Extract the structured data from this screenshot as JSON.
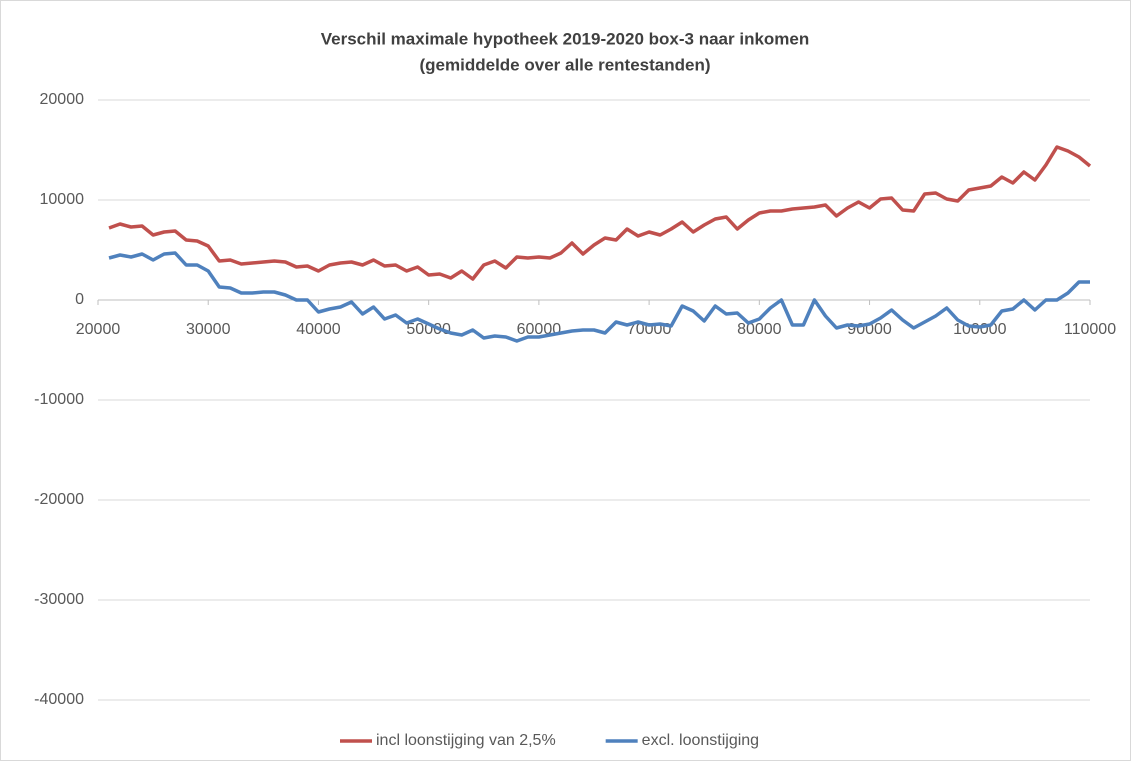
{
  "chart_data": {
    "type": "line",
    "title": "Verschil maximale hypotheek 2019-2020 box-3 naar inkomen",
    "subtitle": "(gemiddelde over alle rentestanden)",
    "x": [
      21000,
      22000,
      23000,
      24000,
      25000,
      26000,
      27000,
      28000,
      29000,
      30000,
      31000,
      32000,
      33000,
      34000,
      35000,
      36000,
      37000,
      38000,
      39000,
      40000,
      41000,
      42000,
      43000,
      44000,
      45000,
      46000,
      47000,
      48000,
      49000,
      50000,
      51000,
      52000,
      53000,
      54000,
      55000,
      56000,
      57000,
      58000,
      59000,
      60000,
      61000,
      62000,
      63000,
      64000,
      65000,
      66000,
      67000,
      68000,
      69000,
      70000,
      71000,
      72000,
      73000,
      74000,
      75000,
      76000,
      77000,
      78000,
      79000,
      80000,
      81000,
      82000,
      83000,
      84000,
      85000,
      86000,
      87000,
      88000,
      89000,
      90000,
      91000,
      92000,
      93000,
      94000,
      95000,
      96000,
      97000,
      98000,
      99000,
      100000,
      101000,
      102000,
      103000,
      104000,
      105000,
      106000,
      107000,
      108000,
      109000,
      110000
    ],
    "series": [
      {
        "name": "incl loonstijging van 2,5%",
        "color": "#c0504d",
        "values": [
          7200,
          7600,
          7300,
          7400,
          6500,
          6800,
          6900,
          6000,
          5900,
          5400,
          3900,
          4000,
          3600,
          3700,
          3800,
          3900,
          3800,
          3300,
          3400,
          2900,
          3500,
          3700,
          3800,
          3500,
          4000,
          3400,
          3500,
          2900,
          3300,
          2500,
          2600,
          2200,
          2900,
          2100,
          3500,
          3900,
          3200,
          4300,
          4200,
          4300,
          4200,
          4700,
          5700,
          4600,
          5500,
          6200,
          6000,
          7100,
          6400,
          6800,
          6500,
          7100,
          7800,
          6800,
          7500,
          8100,
          8300,
          7100,
          8000,
          8700,
          8900,
          8900,
          9100,
          9200,
          9300,
          9500,
          8400,
          9200,
          9800,
          9200,
          10100,
          10200,
          9000,
          8900,
          10600,
          10700,
          10100,
          9900,
          11000,
          11200,
          11400,
          12300,
          11700,
          12800,
          12000,
          13500,
          15300,
          14900,
          14300,
          13400
        ]
      },
      {
        "name": "excl. loonstijging",
        "color": "#4f81bd",
        "values": [
          4200,
          4500,
          4300,
          4600,
          4000,
          4600,
          4700,
          3500,
          3500,
          2900,
          1300,
          1200,
          700,
          700,
          800,
          800,
          500,
          0,
          0,
          -1200,
          -900,
          -700,
          -200,
          -1400,
          -700,
          -1900,
          -1500,
          -2300,
          -1900,
          -2400,
          -2900,
          -3300,
          -3500,
          -3000,
          -3800,
          -3600,
          -3700,
          -4100,
          -3700,
          -3700,
          -3500,
          -3300,
          -3100,
          -3000,
          -3000,
          -3300,
          -2200,
          -2500,
          -2200,
          -2500,
          -2400,
          -2600,
          -600,
          -1100,
          -2100,
          -600,
          -1400,
          -1300,
          -2300,
          -1900,
          -800,
          0,
          -2500,
          -2500,
          0,
          -1600,
          -2800,
          -2500,
          -2600,
          -2400,
          -1800,
          -1000,
          -2000,
          -2800,
          -2200,
          -1600,
          -800,
          -2000,
          -2600,
          -2700,
          -2500,
          -1100,
          -900,
          0,
          -1000,
          0,
          0,
          700,
          1800,
          1800
        ]
      }
    ],
    "xlim": [
      20000,
      110000
    ],
    "xticks": [
      20000,
      30000,
      40000,
      50000,
      60000,
      70000,
      80000,
      90000,
      100000,
      110000
    ],
    "ylim": [
      -40000,
      20000
    ],
    "yticks": [
      -40000,
      -30000,
      -20000,
      -10000,
      0,
      10000,
      20000
    ],
    "grid": true,
    "legend": "bottom"
  }
}
